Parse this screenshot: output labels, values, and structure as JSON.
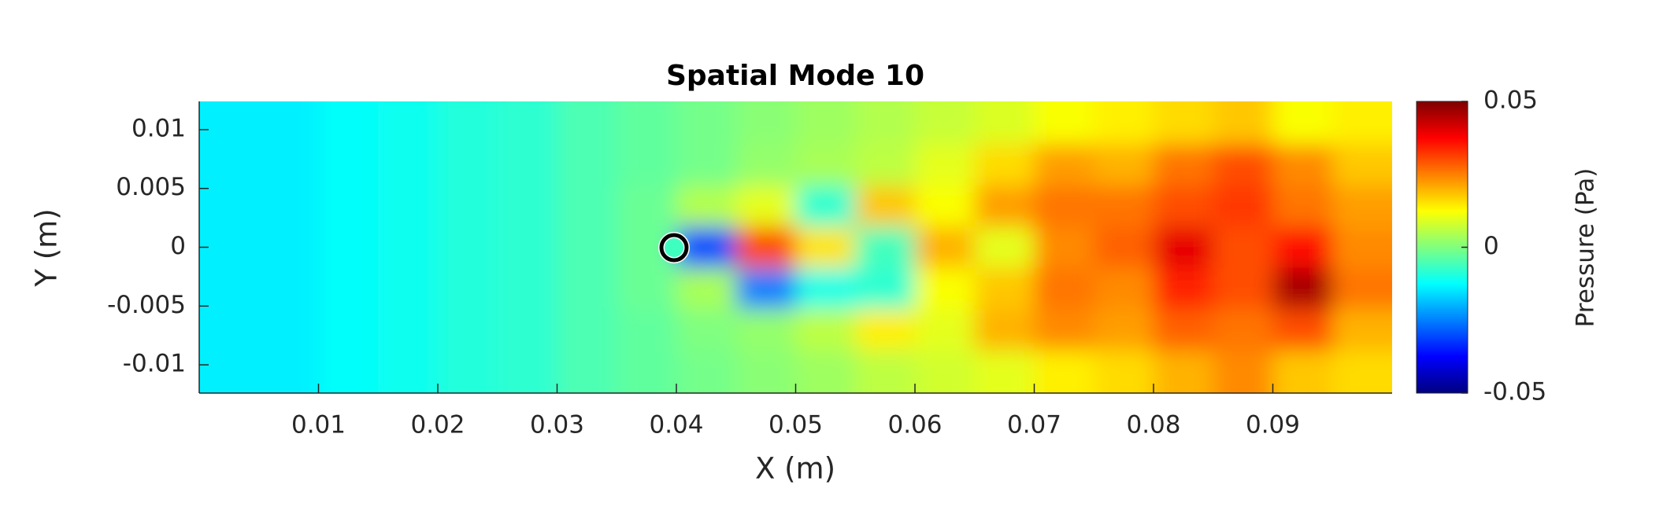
{
  "chart_data": {
    "type": "contour",
    "title": "Spatial Mode 10",
    "xlabel": "X (m)",
    "ylabel": "Y (m)",
    "xlim": [
      0,
      0.1
    ],
    "ylim": [
      -0.0124,
      0.0124
    ],
    "xticks": [
      0.01,
      0.02,
      0.03,
      0.04,
      0.05,
      0.06,
      0.07,
      0.08,
      0.09
    ],
    "yticks": [
      -0.01,
      -0.005,
      0,
      0.005,
      0.01
    ],
    "x": [
      0.0025,
      0.0075,
      0.0125,
      0.0175,
      0.0225,
      0.0275,
      0.0325,
      0.0375,
      0.0425,
      0.0475,
      0.0525,
      0.0575,
      0.0625,
      0.0675,
      0.0725,
      0.0775,
      0.0825,
      0.0875,
      0.0925,
      0.0975
    ],
    "y": [
      0.0105,
      0.007,
      0.0035,
      0,
      -0.0035,
      -0.007,
      -0.0105
    ],
    "z": [
      [
        -0.014,
        -0.014,
        -0.012,
        -0.011,
        -0.009,
        -0.008,
        -0.005,
        -0.003,
        -0.001,
        0.001,
        0.003,
        0.005,
        0.007,
        0.009,
        0.012,
        0.014,
        0.016,
        0.018,
        0.012,
        0.014
      ],
      [
        -0.014,
        -0.014,
        -0.012,
        -0.011,
        -0.009,
        -0.008,
        -0.005,
        -0.003,
        -0.001,
        0.002,
        0.004,
        0.006,
        0.01,
        0.016,
        0.022,
        0.02,
        0.026,
        0.03,
        0.024,
        0.018
      ],
      [
        -0.014,
        -0.014,
        -0.012,
        -0.011,
        -0.009,
        -0.008,
        -0.005,
        -0.002,
        0.005,
        0.01,
        -0.008,
        0.018,
        0.012,
        0.022,
        0.026,
        0.026,
        0.03,
        0.032,
        0.026,
        0.022
      ],
      [
        -0.014,
        -0.014,
        -0.012,
        -0.011,
        -0.009,
        -0.008,
        -0.005,
        -0.002,
        -0.03,
        0.03,
        0.015,
        -0.006,
        0.02,
        0.01,
        0.024,
        0.028,
        0.04,
        0.03,
        0.036,
        0.024
      ],
      [
        -0.014,
        -0.014,
        -0.012,
        -0.011,
        -0.009,
        -0.008,
        -0.005,
        -0.002,
        0.004,
        -0.025,
        -0.01,
        -0.008,
        0.012,
        0.018,
        0.026,
        0.024,
        0.034,
        0.03,
        0.046,
        0.026
      ],
      [
        -0.014,
        -0.014,
        -0.012,
        -0.011,
        -0.009,
        -0.008,
        -0.005,
        -0.003,
        0.0,
        0.002,
        0.006,
        0.014,
        0.01,
        0.02,
        0.024,
        0.022,
        0.028,
        0.026,
        0.03,
        0.02
      ],
      [
        -0.014,
        -0.014,
        -0.012,
        -0.011,
        -0.009,
        -0.008,
        -0.005,
        -0.003,
        -0.001,
        0.001,
        0.003,
        0.006,
        0.008,
        0.01,
        0.014,
        0.016,
        0.02,
        0.024,
        0.018,
        0.016
      ]
    ],
    "colormap": "jet",
    "colorbar": {
      "label": "Pressure (Pa)",
      "clim": [
        -0.05,
        0.05
      ],
      "ticks": [
        -0.05,
        0,
        0.05
      ]
    }
  }
}
